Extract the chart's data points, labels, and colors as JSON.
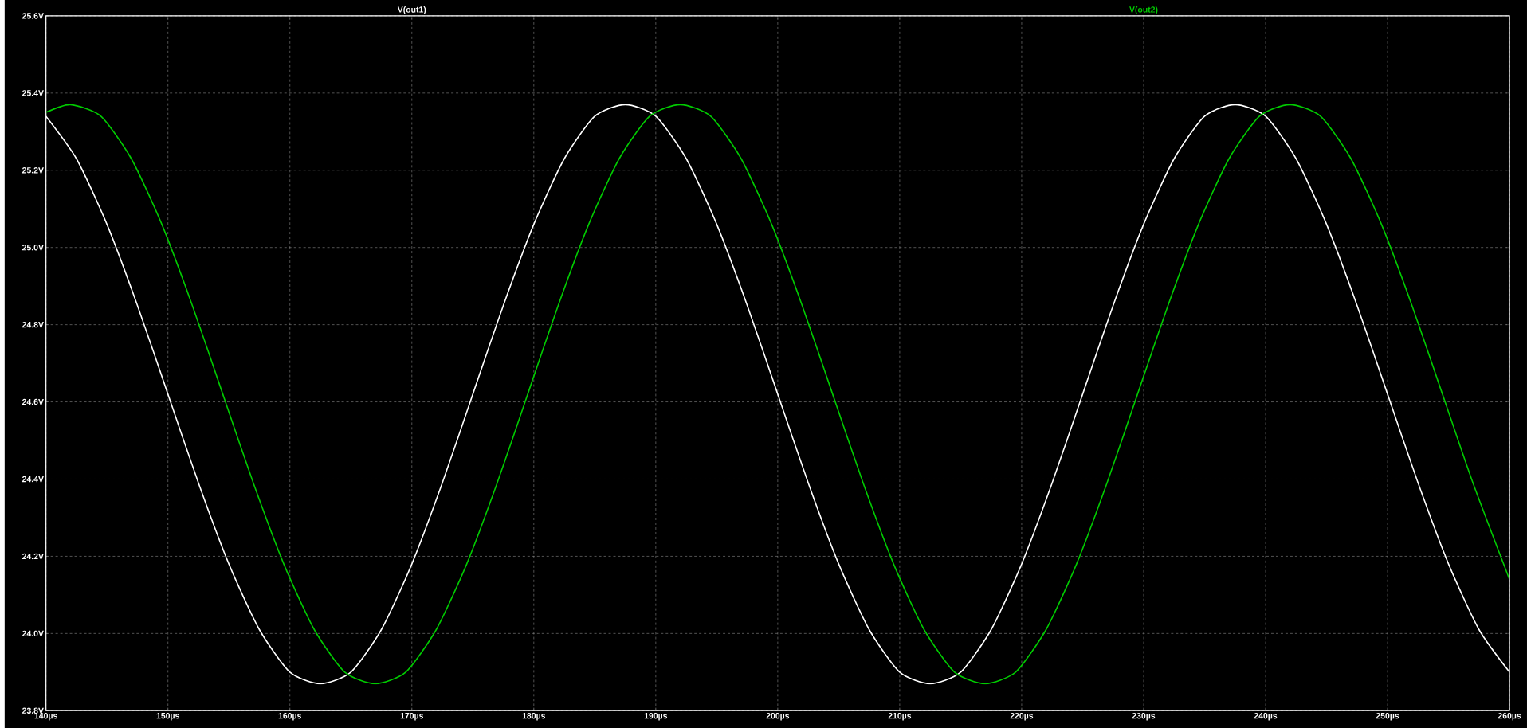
{
  "chart_data": {
    "type": "line",
    "xlim": [
      140,
      260
    ],
    "ylim": [
      23.8,
      25.6
    ],
    "xticks": [
      {
        "value": 140,
        "label": "140µs"
      },
      {
        "value": 150,
        "label": "150µs"
      },
      {
        "value": 160,
        "label": "160µs"
      },
      {
        "value": 170,
        "label": "170µs"
      },
      {
        "value": 180,
        "label": "180µs"
      },
      {
        "value": 190,
        "label": "190µs"
      },
      {
        "value": 200,
        "label": "200µs"
      },
      {
        "value": 210,
        "label": "210µs"
      },
      {
        "value": 220,
        "label": "220µs"
      },
      {
        "value": 230,
        "label": "230µs"
      },
      {
        "value": 240,
        "label": "240µs"
      },
      {
        "value": 250,
        "label": "250µs"
      },
      {
        "value": 260,
        "label": "260µs"
      }
    ],
    "yticks": [
      {
        "value": 23.8,
        "label": "23.8V"
      },
      {
        "value": 24.0,
        "label": "24.0V"
      },
      {
        "value": 24.2,
        "label": "24.2V"
      },
      {
        "value": 24.4,
        "label": "24.4V"
      },
      {
        "value": 24.6,
        "label": "24.6V"
      },
      {
        "value": 24.8,
        "label": "24.8V"
      },
      {
        "value": 25.0,
        "label": "25.0V"
      },
      {
        "value": 25.2,
        "label": "25.2V"
      },
      {
        "value": 25.4,
        "label": "25.4V"
      },
      {
        "value": 25.6,
        "label": "25.6V"
      }
    ],
    "grid": true,
    "legend": "top",
    "marker": "none",
    "line_style": "solid",
    "series": [
      {
        "name": "V(out1)",
        "color": "#ffffff",
        "x": [
          140,
          142.5,
          145,
          147.5,
          150,
          152.5,
          155,
          157.5,
          160,
          162.5,
          165,
          167.5,
          170,
          172.5,
          175,
          177.5,
          180,
          182.5,
          185,
          187.5,
          190,
          192.5,
          195,
          197.5,
          200,
          202.5,
          205,
          207.5,
          210,
          212.5,
          215,
          217.5,
          220,
          222.5,
          225,
          227.5,
          230,
          232.5,
          235,
          237.5,
          240,
          242.5,
          245,
          247.5,
          250,
          252.5,
          255,
          257.5,
          260
        ],
        "values": [
          25.34,
          25.23,
          25.06,
          24.85,
          24.62,
          24.39,
          24.18,
          24.01,
          23.9,
          23.87,
          23.9,
          24.01,
          24.18,
          24.39,
          24.62,
          24.85,
          25.06,
          25.23,
          25.34,
          25.37,
          25.34,
          25.23,
          25.06,
          24.85,
          24.62,
          24.39,
          24.18,
          24.01,
          23.9,
          23.87,
          23.9,
          24.01,
          24.18,
          24.39,
          24.62,
          24.85,
          25.06,
          25.23,
          25.34,
          25.37,
          25.34,
          25.23,
          25.06,
          24.85,
          24.62,
          24.39,
          24.18,
          24.01,
          23.9
        ]
      },
      {
        "name": "V(out2)",
        "color": "#00cc00",
        "x": [
          140,
          142,
          144.5,
          147,
          149.5,
          152,
          154.5,
          157,
          159.5,
          162,
          164.5,
          167,
          169.5,
          172,
          174.5,
          177,
          179.5,
          182,
          184.5,
          187,
          189.5,
          192,
          194.5,
          197,
          199.5,
          202,
          204.5,
          207,
          209.5,
          212,
          214.5,
          217,
          219.5,
          222,
          224.5,
          227,
          229.5,
          232,
          234.5,
          237,
          239.5,
          242,
          244.5,
          247,
          249.5,
          252,
          254.5,
          257,
          260
        ],
        "values": [
          25.35,
          25.37,
          25.34,
          25.23,
          25.06,
          24.85,
          24.62,
          24.39,
          24.18,
          24.01,
          23.9,
          23.87,
          23.9,
          24.01,
          24.18,
          24.39,
          24.62,
          24.85,
          25.06,
          25.23,
          25.34,
          25.37,
          25.34,
          25.23,
          25.06,
          24.85,
          24.62,
          24.39,
          24.18,
          24.01,
          23.9,
          23.87,
          23.9,
          24.01,
          24.18,
          24.39,
          24.62,
          24.85,
          25.06,
          25.23,
          25.34,
          25.37,
          25.34,
          25.23,
          25.06,
          24.85,
          24.62,
          24.39,
          24.14
        ]
      }
    ]
  }
}
